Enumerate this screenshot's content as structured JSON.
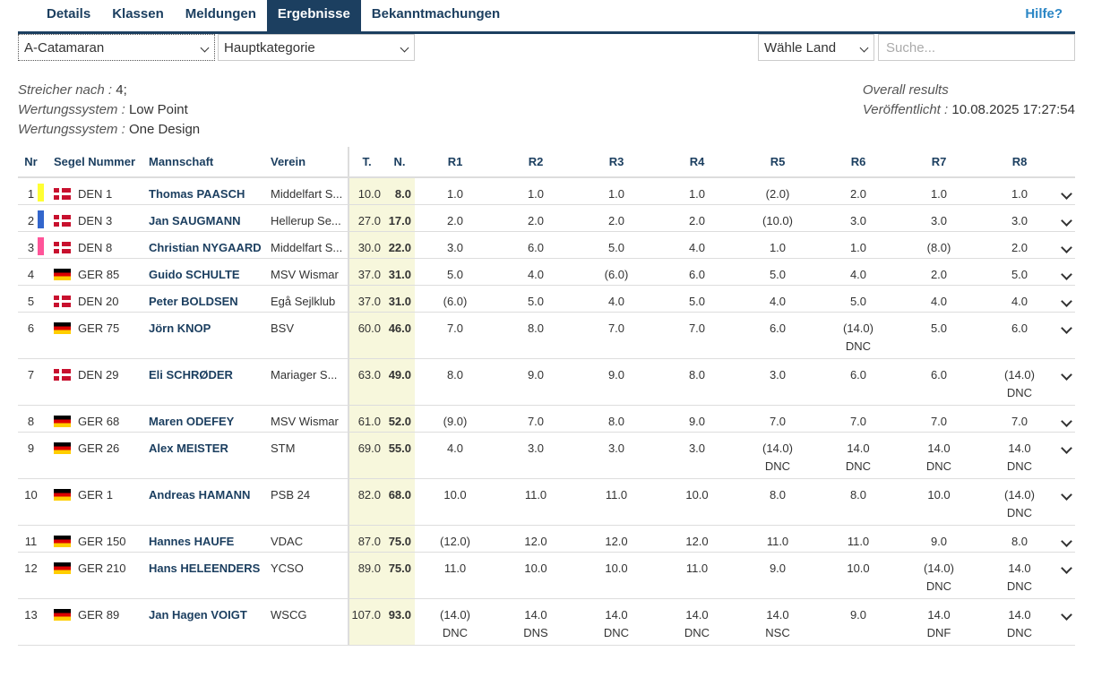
{
  "tabs": [
    {
      "label": "Details",
      "active": false
    },
    {
      "label": "Klassen",
      "active": false
    },
    {
      "label": "Meldungen",
      "active": false
    },
    {
      "label": "Ergebnisse",
      "active": true
    },
    {
      "label": "Bekanntmachungen",
      "active": false
    }
  ],
  "help_label": "Hilfe?",
  "filters": {
    "class_value": "A-Catamaran",
    "category_value": "Hauptkategorie",
    "country_value": "Wähle Land",
    "search_placeholder": "Suche..."
  },
  "info": {
    "discards_label": "Streicher nach :",
    "discards_value": "4;",
    "scoring1_label": "Wertungssystem :",
    "scoring1_value": "Low Point",
    "scoring2_label": "Wertungssystem :",
    "scoring2_value": "One Design",
    "overall_label": "Overall results",
    "published_label": "Veröffentlicht :",
    "published_value": "10.08.2025 17:27:54"
  },
  "columns": {
    "nr": "Nr",
    "sail": "Segel Nummer",
    "team": "Mannschaft",
    "club": "Verein",
    "total": "T.",
    "net": "N.",
    "races": [
      "R1",
      "R2",
      "R3",
      "R4",
      "R5",
      "R6",
      "R7",
      "R8"
    ]
  },
  "colors": {
    "accent": "#1c3f60",
    "link": "#2b86c5",
    "points_bg": "#f7f7dc"
  },
  "rows": [
    {
      "nr": "1",
      "medal": "#ffff33",
      "country": "DEN",
      "sail": "DEN 1",
      "name": "Thomas PAASCH",
      "club": "Middelfart S...",
      "total": "10.0",
      "net": "8.0",
      "races": [
        {
          "v": "1.0",
          "c": ""
        },
        {
          "v": "1.0",
          "c": ""
        },
        {
          "v": "1.0",
          "c": ""
        },
        {
          "v": "1.0",
          "c": ""
        },
        {
          "v": "(2.0)",
          "c": ""
        },
        {
          "v": "2.0",
          "c": ""
        },
        {
          "v": "1.0",
          "c": ""
        },
        {
          "v": "1.0",
          "c": ""
        }
      ]
    },
    {
      "nr": "2",
      "medal": "#3366cc",
      "country": "DEN",
      "sail": "DEN 3",
      "name": "Jan SAUGMANN",
      "club": "Hellerup Se...",
      "total": "27.0",
      "net": "17.0",
      "races": [
        {
          "v": "2.0",
          "c": ""
        },
        {
          "v": "2.0",
          "c": ""
        },
        {
          "v": "2.0",
          "c": ""
        },
        {
          "v": "2.0",
          "c": ""
        },
        {
          "v": "(10.0)",
          "c": ""
        },
        {
          "v": "3.0",
          "c": ""
        },
        {
          "v": "3.0",
          "c": ""
        },
        {
          "v": "3.0",
          "c": ""
        }
      ]
    },
    {
      "nr": "3",
      "medal": "#ff5599",
      "country": "DEN",
      "sail": "DEN 8",
      "name": "Christian NYGAARD",
      "club": "Middelfart S...",
      "total": "30.0",
      "net": "22.0",
      "races": [
        {
          "v": "3.0",
          "c": ""
        },
        {
          "v": "6.0",
          "c": ""
        },
        {
          "v": "5.0",
          "c": ""
        },
        {
          "v": "4.0",
          "c": ""
        },
        {
          "v": "1.0",
          "c": ""
        },
        {
          "v": "1.0",
          "c": ""
        },
        {
          "v": "(8.0)",
          "c": ""
        },
        {
          "v": "2.0",
          "c": ""
        }
      ]
    },
    {
      "nr": "4",
      "medal": "",
      "country": "GER",
      "sail": "GER 85",
      "name": "Guido SCHULTE",
      "club": "MSV Wismar",
      "total": "37.0",
      "net": "31.0",
      "races": [
        {
          "v": "5.0",
          "c": ""
        },
        {
          "v": "4.0",
          "c": ""
        },
        {
          "v": "(6.0)",
          "c": ""
        },
        {
          "v": "6.0",
          "c": ""
        },
        {
          "v": "5.0",
          "c": ""
        },
        {
          "v": "4.0",
          "c": ""
        },
        {
          "v": "2.0",
          "c": ""
        },
        {
          "v": "5.0",
          "c": ""
        }
      ]
    },
    {
      "nr": "5",
      "medal": "",
      "country": "DEN",
      "sail": "DEN 20",
      "name": "Peter BOLDSEN",
      "club": "Egå Sejlklub",
      "total": "37.0",
      "net": "31.0",
      "races": [
        {
          "v": "(6.0)",
          "c": ""
        },
        {
          "v": "5.0",
          "c": ""
        },
        {
          "v": "4.0",
          "c": ""
        },
        {
          "v": "5.0",
          "c": ""
        },
        {
          "v": "4.0",
          "c": ""
        },
        {
          "v": "5.0",
          "c": ""
        },
        {
          "v": "4.0",
          "c": ""
        },
        {
          "v": "4.0",
          "c": ""
        }
      ]
    },
    {
      "nr": "6",
      "medal": "",
      "country": "GER",
      "sail": "GER 75",
      "name": "Jörn KNOP",
      "club": "BSV",
      "total": "60.0",
      "net": "46.0",
      "races": [
        {
          "v": "7.0",
          "c": ""
        },
        {
          "v": "8.0",
          "c": ""
        },
        {
          "v": "7.0",
          "c": ""
        },
        {
          "v": "7.0",
          "c": ""
        },
        {
          "v": "6.0",
          "c": ""
        },
        {
          "v": "(14.0)",
          "c": "DNC"
        },
        {
          "v": "5.0",
          "c": ""
        },
        {
          "v": "6.0",
          "c": ""
        }
      ]
    },
    {
      "nr": "7",
      "medal": "",
      "country": "DEN",
      "sail": "DEN 29",
      "name": "Eli SCHRØDER",
      "club": "Mariager S...",
      "total": "63.0",
      "net": "49.0",
      "races": [
        {
          "v": "8.0",
          "c": ""
        },
        {
          "v": "9.0",
          "c": ""
        },
        {
          "v": "9.0",
          "c": ""
        },
        {
          "v": "8.0",
          "c": ""
        },
        {
          "v": "3.0",
          "c": ""
        },
        {
          "v": "6.0",
          "c": ""
        },
        {
          "v": "6.0",
          "c": ""
        },
        {
          "v": "(14.0)",
          "c": "DNC"
        }
      ]
    },
    {
      "nr": "8",
      "medal": "",
      "country": "GER",
      "sail": "GER 68",
      "name": "Maren ODEFEY",
      "club": "MSV Wismar",
      "total": "61.0",
      "net": "52.0",
      "races": [
        {
          "v": "(9.0)",
          "c": ""
        },
        {
          "v": "7.0",
          "c": ""
        },
        {
          "v": "8.0",
          "c": ""
        },
        {
          "v": "9.0",
          "c": ""
        },
        {
          "v": "7.0",
          "c": ""
        },
        {
          "v": "7.0",
          "c": ""
        },
        {
          "v": "7.0",
          "c": ""
        },
        {
          "v": "7.0",
          "c": ""
        }
      ]
    },
    {
      "nr": "9",
      "medal": "",
      "country": "GER",
      "sail": "GER 26",
      "name": "Alex MEISTER",
      "club": "STM",
      "total": "69.0",
      "net": "55.0",
      "races": [
        {
          "v": "4.0",
          "c": ""
        },
        {
          "v": "3.0",
          "c": ""
        },
        {
          "v": "3.0",
          "c": ""
        },
        {
          "v": "3.0",
          "c": ""
        },
        {
          "v": "(14.0)",
          "c": "DNC"
        },
        {
          "v": "14.0",
          "c": "DNC"
        },
        {
          "v": "14.0",
          "c": "DNC"
        },
        {
          "v": "14.0",
          "c": "DNC"
        }
      ]
    },
    {
      "nr": "10",
      "medal": "",
      "country": "GER",
      "sail": "GER 1",
      "name": "Andreas HAMANN",
      "club": "PSB 24",
      "total": "82.0",
      "net": "68.0",
      "races": [
        {
          "v": "10.0",
          "c": ""
        },
        {
          "v": "11.0",
          "c": ""
        },
        {
          "v": "11.0",
          "c": ""
        },
        {
          "v": "10.0",
          "c": ""
        },
        {
          "v": "8.0",
          "c": ""
        },
        {
          "v": "8.0",
          "c": ""
        },
        {
          "v": "10.0",
          "c": ""
        },
        {
          "v": "(14.0)",
          "c": "DNC"
        }
      ]
    },
    {
      "nr": "11",
      "medal": "",
      "country": "GER",
      "sail": "GER 150",
      "name": "Hannes HAUFE",
      "club": "VDAC",
      "total": "87.0",
      "net": "75.0",
      "races": [
        {
          "v": "(12.0)",
          "c": ""
        },
        {
          "v": "12.0",
          "c": ""
        },
        {
          "v": "12.0",
          "c": ""
        },
        {
          "v": "12.0",
          "c": ""
        },
        {
          "v": "11.0",
          "c": ""
        },
        {
          "v": "11.0",
          "c": ""
        },
        {
          "v": "9.0",
          "c": ""
        },
        {
          "v": "8.0",
          "c": ""
        }
      ]
    },
    {
      "nr": "12",
      "medal": "",
      "country": "GER",
      "sail": "GER 210",
      "name": "Hans HELEENDERS",
      "club": "YCSO",
      "total": "89.0",
      "net": "75.0",
      "races": [
        {
          "v": "11.0",
          "c": ""
        },
        {
          "v": "10.0",
          "c": ""
        },
        {
          "v": "10.0",
          "c": ""
        },
        {
          "v": "11.0",
          "c": ""
        },
        {
          "v": "9.0",
          "c": ""
        },
        {
          "v": "10.0",
          "c": ""
        },
        {
          "v": "(14.0)",
          "c": "DNC"
        },
        {
          "v": "14.0",
          "c": "DNC"
        }
      ]
    },
    {
      "nr": "13",
      "medal": "",
      "country": "GER",
      "sail": "GER 89",
      "name": "Jan Hagen VOIGT",
      "club": "WSCG",
      "total": "107.0",
      "net": "93.0",
      "races": [
        {
          "v": "(14.0)",
          "c": "DNC"
        },
        {
          "v": "14.0",
          "c": "DNS"
        },
        {
          "v": "14.0",
          "c": "DNC"
        },
        {
          "v": "14.0",
          "c": "DNC"
        },
        {
          "v": "14.0",
          "c": "NSC"
        },
        {
          "v": "9.0",
          "c": ""
        },
        {
          "v": "14.0",
          "c": "DNF"
        },
        {
          "v": "14.0",
          "c": "DNC"
        }
      ]
    }
  ]
}
